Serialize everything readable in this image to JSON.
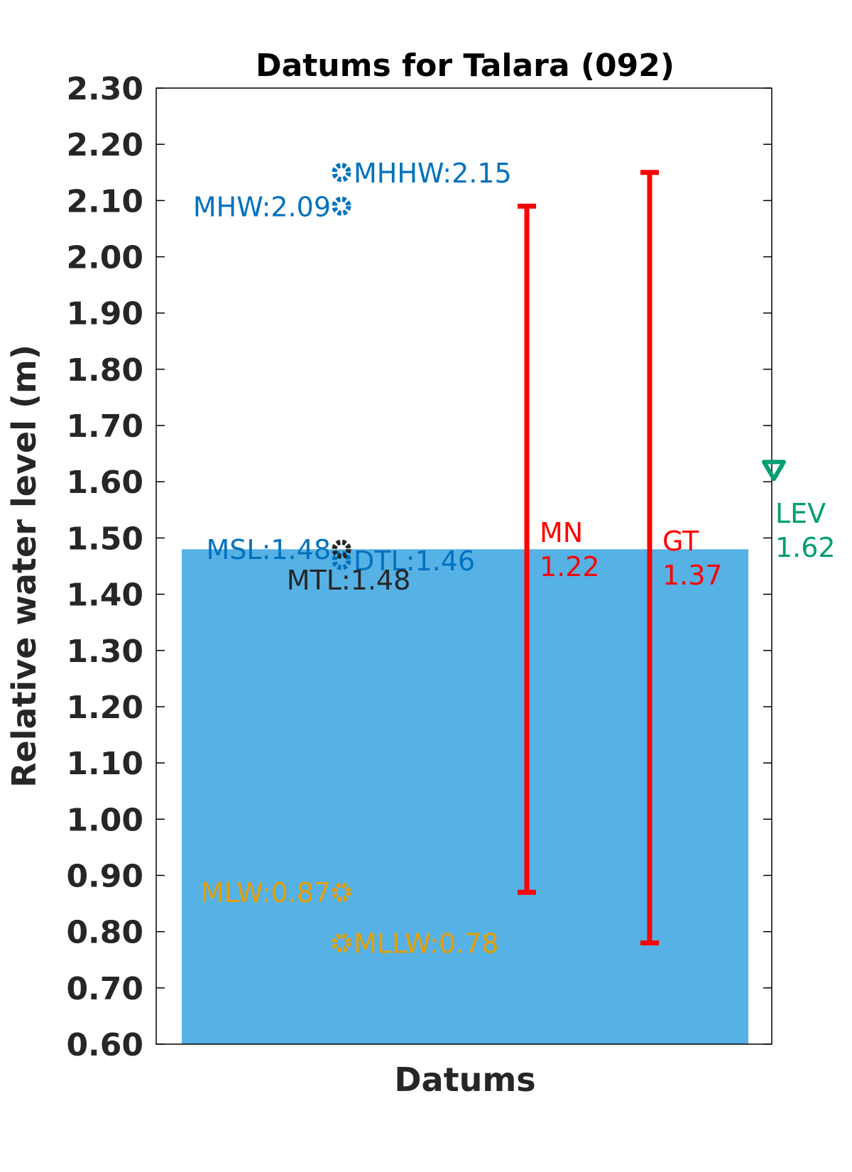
{
  "chart_data": {
    "type": "bar",
    "title": "Datums for Talara (092)",
    "xlabel": "Datums",
    "ylabel": "Relative water level (m)",
    "ylim": [
      0.6,
      2.3
    ],
    "yticks": [
      "0.60",
      "0.70",
      "0.80",
      "0.90",
      "1.00",
      "1.10",
      "1.20",
      "1.30",
      "1.40",
      "1.50",
      "1.60",
      "1.70",
      "1.80",
      "1.90",
      "2.00",
      "2.10",
      "2.20",
      "2.30"
    ],
    "grid": false,
    "bar": {
      "value": 1.48,
      "color": "#56b1e5"
    },
    "datums": [
      {
        "name": "MHHW",
        "value": 2.15,
        "label": "MHHW:2.15",
        "color": "#0072bd",
        "label_side": "right"
      },
      {
        "name": "MHW",
        "value": 2.09,
        "label": "MHW:2.09",
        "color": "#0072bd",
        "label_side": "left"
      },
      {
        "name": "MSL",
        "value": 1.48,
        "label": "MSL:1.48",
        "color": "#0072bd",
        "label_side": "left"
      },
      {
        "name": "DTL",
        "value": 1.46,
        "label": "DTL:1.46",
        "color": "#0072bd",
        "label_side": "right"
      },
      {
        "name": "MTL",
        "value": 1.48,
        "label": "MTL:1.48",
        "color": "#262626",
        "label_side": "below"
      },
      {
        "name": "MLW",
        "value": 0.87,
        "label": "MLW:0.87",
        "color": "#e69f00",
        "label_side": "left"
      },
      {
        "name": "MLLW",
        "value": 0.78,
        "label": "MLLW:0.78",
        "color": "#e69f00",
        "label_side": "right"
      }
    ],
    "ranges": [
      {
        "name": "MN",
        "low": 0.87,
        "high": 2.09,
        "label": "MN",
        "value_label": "1.22",
        "color": "#ff0000"
      },
      {
        "name": "GT",
        "low": 0.78,
        "high": 2.15,
        "label": "GT",
        "value_label": "1.37",
        "color": "#ff0000"
      }
    ],
    "level": {
      "name": "LEV",
      "value": 1.62,
      "label": "LEV",
      "value_label": "1.62",
      "color": "#009e73"
    }
  }
}
